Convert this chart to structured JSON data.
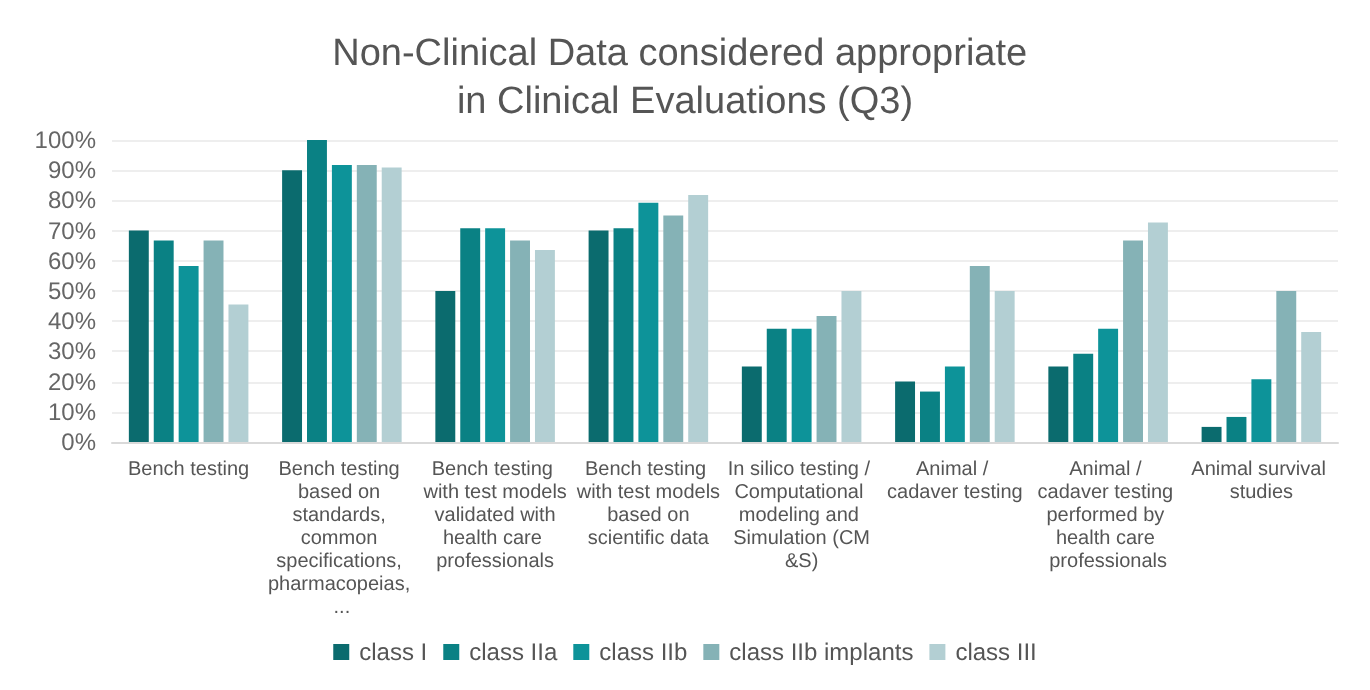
{
  "chart_data": {
    "type": "bar",
    "title": "Non-Clinical Data considered appropriate in Clinical Evaluations (Q3)",
    "categories": [
      "Bench testing",
      "Bench testing based on standards, common specifications, pharmacopeias, ...",
      "Bench testing with test models validated with health care professionals",
      "Bench testing with test models based on scientific data",
      "In silico testing / Computational modeling and Simulation (CM&S)",
      "Animal / cadaver testing",
      "Animal / cadaver testing performed by health care professionals",
      "Animal survival studies"
    ],
    "series": [
      {
        "name": "class I",
        "color": "#0b6b6e",
        "values": [
          70,
          90,
          50,
          70,
          25,
          20,
          25,
          5
        ]
      },
      {
        "name": "class IIa",
        "color": "#0a8184",
        "values": [
          66.7,
          100,
          70.8,
          70.8,
          37.5,
          16.7,
          29.2,
          8.3
        ]
      },
      {
        "name": "class IIb",
        "color": "#0d9399",
        "values": [
          58.3,
          91.7,
          70.8,
          79.2,
          37.5,
          25,
          37.5,
          20.8
        ]
      },
      {
        "name": "class IIb implants",
        "color": "#85b2b6",
        "values": [
          66.7,
          91.7,
          66.7,
          75,
          41.7,
          58.3,
          66.7,
          50
        ]
      },
      {
        "name": "class III",
        "color": "#b3cfd3",
        "values": [
          45.5,
          90.9,
          63.6,
          81.8,
          50,
          50,
          72.7,
          36.4
        ]
      }
    ],
    "ylim": [
      0,
      100
    ],
    "yticks": [
      {
        "value": 0,
        "label": "0%"
      },
      {
        "value": 10,
        "label": "10%"
      },
      {
        "value": 20,
        "label": "20%"
      },
      {
        "value": 30,
        "label": "30%"
      },
      {
        "value": 40,
        "label": "40%"
      },
      {
        "value": 50,
        "label": "50%"
      },
      {
        "value": 60,
        "label": "60%"
      },
      {
        "value": 70,
        "label": "70%"
      },
      {
        "value": 80,
        "label": "80%"
      },
      {
        "value": 90,
        "label": "90%"
      },
      {
        "value": 100,
        "label": "100%"
      }
    ],
    "grid": "y",
    "legend": "bottom"
  }
}
